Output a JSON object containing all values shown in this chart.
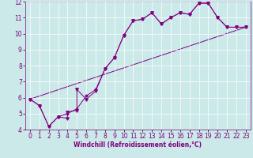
{
  "title": "",
  "xlabel": "Windchill (Refroidissement éolien,°C)",
  "ylabel": "",
  "xlim": [
    -0.5,
    23.5
  ],
  "ylim": [
    4,
    12
  ],
  "yticks": [
    4,
    5,
    6,
    7,
    8,
    9,
    10,
    11,
    12
  ],
  "xticks": [
    0,
    1,
    2,
    3,
    4,
    5,
    6,
    7,
    8,
    9,
    10,
    11,
    12,
    13,
    14,
    15,
    16,
    17,
    18,
    19,
    20,
    21,
    22,
    23
  ],
  "bg_color": "#cce9e9",
  "line_color": "#800080",
  "series1_x": [
    0,
    1,
    2,
    3,
    4,
    4,
    5,
    5,
    6,
    7,
    8,
    9,
    10,
    11,
    12,
    13,
    14,
    15,
    16,
    17,
    18,
    19,
    20,
    21,
    22,
    23
  ],
  "series1_y": [
    5.9,
    5.5,
    4.2,
    4.8,
    4.7,
    5.1,
    5.2,
    6.5,
    5.9,
    6.4,
    7.8,
    8.5,
    9.9,
    10.8,
    10.9,
    11.3,
    10.6,
    11.0,
    11.3,
    11.2,
    11.9,
    11.9,
    11.0,
    10.4,
    10.4,
    10.4
  ],
  "series2_x": [
    0,
    23
  ],
  "series2_y": [
    5.9,
    10.4
  ],
  "series3_x": [
    0,
    1,
    2,
    3,
    4,
    5,
    6,
    7,
    8,
    9,
    10,
    11,
    12,
    13,
    14,
    15,
    16,
    17,
    18,
    19,
    20,
    21,
    22,
    23
  ],
  "series3_y": [
    5.9,
    5.5,
    4.2,
    4.8,
    5.0,
    5.3,
    6.1,
    6.5,
    7.8,
    8.5,
    9.9,
    10.8,
    10.9,
    11.3,
    10.6,
    11.0,
    11.3,
    11.2,
    11.9,
    11.9,
    11.0,
    10.4,
    10.4,
    10.4
  ],
  "tick_fontsize": 5.5,
  "xlabel_fontsize": 5.5
}
